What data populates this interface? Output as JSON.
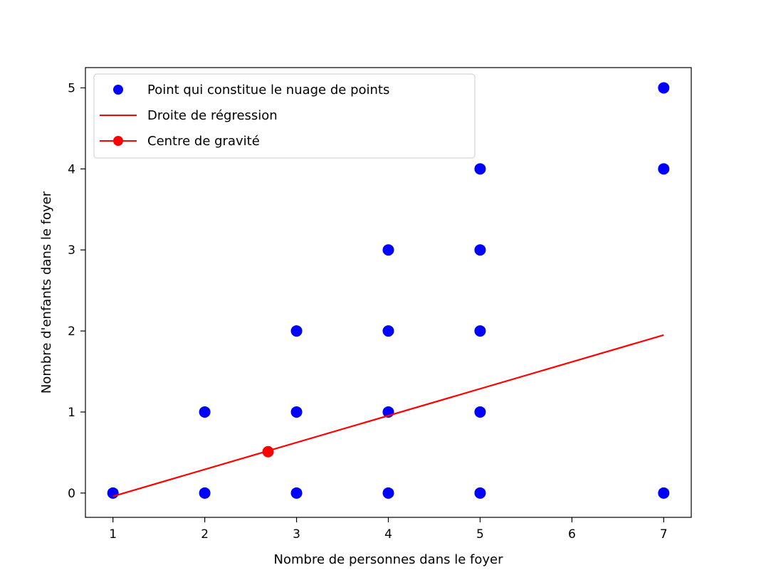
{
  "chart_data": {
    "type": "scatter",
    "title": "",
    "xlabel": "Nombre de personnes dans le foyer",
    "ylabel": "Nombre d'enfants dans le foyer",
    "xlim": [
      0.7,
      7.3
    ],
    "ylim": [
      -0.3,
      5.25
    ],
    "xticks": [
      1,
      2,
      3,
      4,
      5,
      6,
      7
    ],
    "yticks": [
      0,
      1,
      2,
      3,
      4,
      5
    ],
    "grid": false,
    "legend_position": "top-left",
    "series": [
      {
        "name": "Point qui constitue le nuage de points",
        "kind": "scatter",
        "color": "#0000ff",
        "points": [
          [
            1,
            0
          ],
          [
            2,
            0
          ],
          [
            2,
            1
          ],
          [
            3,
            0
          ],
          [
            3,
            1
          ],
          [
            3,
            2
          ],
          [
            4,
            0
          ],
          [
            4,
            1
          ],
          [
            4,
            2
          ],
          [
            4,
            3
          ],
          [
            5,
            0
          ],
          [
            5,
            1
          ],
          [
            5,
            2
          ],
          [
            5,
            3
          ],
          [
            5,
            4
          ],
          [
            7,
            0
          ],
          [
            7,
            4
          ],
          [
            7,
            5
          ]
        ]
      },
      {
        "name": "Droite de régression",
        "kind": "line",
        "color": "#ff0000",
        "points": [
          [
            1,
            -0.04
          ],
          [
            7,
            1.95
          ]
        ]
      },
      {
        "name": "Centre de gravité",
        "kind": "point",
        "color": "#ff0000",
        "points": [
          [
            2.69,
            0.51
          ]
        ]
      }
    ]
  }
}
